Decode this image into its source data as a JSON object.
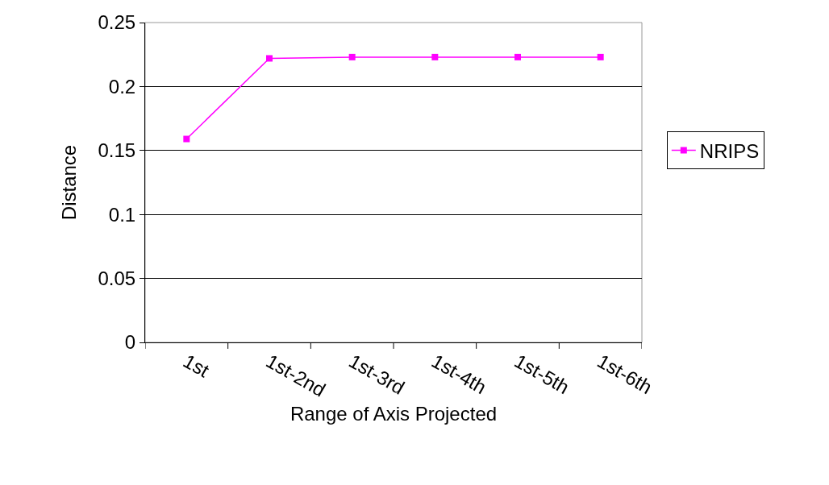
{
  "chart_data": {
    "type": "line",
    "xlabel": "Range of Axis Projected",
    "ylabel": "Distance",
    "categories": [
      "1st",
      "1st-2nd",
      "1st-3rd",
      "1st-4th",
      "1st-5th",
      "1st-6th"
    ],
    "series": [
      {
        "name": "NRIPS",
        "color": "#ff00ff",
        "values": [
          0.159,
          0.222,
          0.223,
          0.223,
          0.223,
          0.223
        ]
      }
    ],
    "ylim": [
      0,
      0.25
    ],
    "yticks": [
      0,
      0.05,
      0.1,
      0.15,
      0.2,
      0.25
    ],
    "grid": "y",
    "legend": "right",
    "marker": "square",
    "line_style": "solid"
  }
}
